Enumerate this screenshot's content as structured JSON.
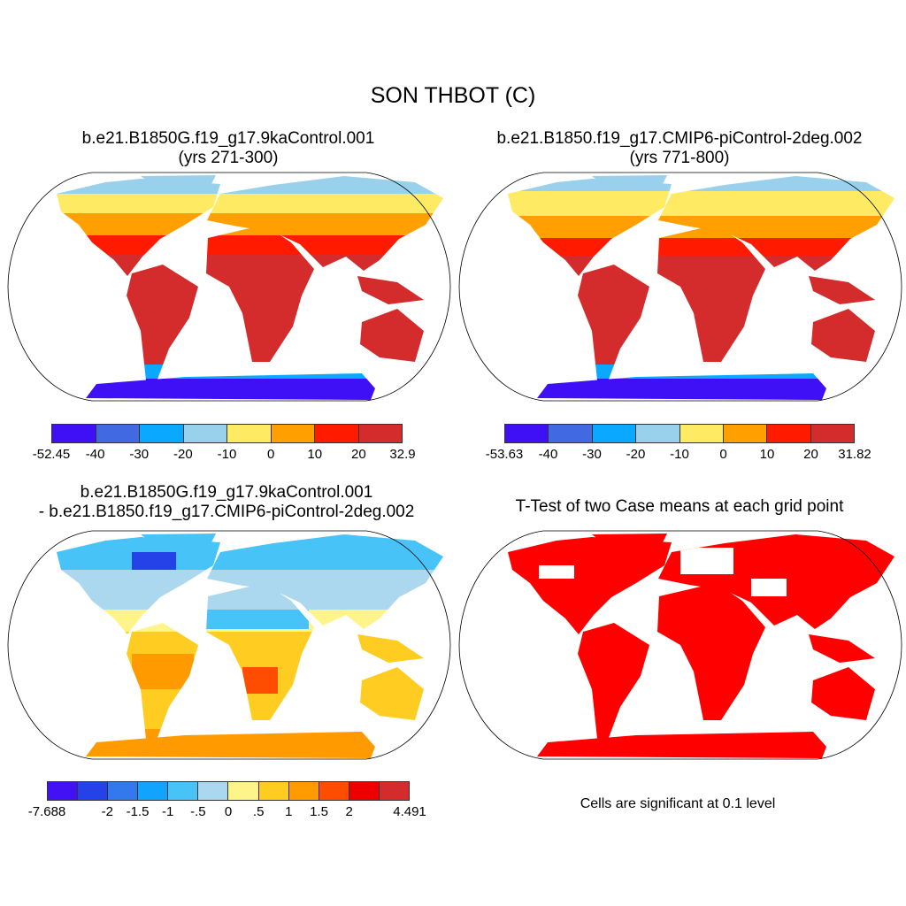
{
  "main_title": "SON THBOT (C)",
  "panels": [
    {
      "title_line1": "b.e21.B1850G.f19_g17.9kaControl.001",
      "title_line2": "(yrs 271-300)"
    },
    {
      "title_line1": "b.e21.B1850.f19_g17.CMIP6-piControl-2deg.002",
      "title_line2": "(yrs 771-800)"
    },
    {
      "title_line1": "b.e21.B1850G.f19_g17.9kaControl.001",
      "title_line2": "- b.e21.B1850.f19_g17.CMIP6-piControl-2deg.002"
    },
    {
      "title_line1": "T-Test of two Case means at each grid point",
      "note": "Cells are significant at 0.1 level"
    }
  ],
  "colorbars": [
    {
      "labels": [
        "-52.45",
        "-40",
        "-30",
        "-20",
        "-10",
        "0",
        "10",
        "20",
        "32.9"
      ],
      "colors": [
        "#3f10f5",
        "#4169e1",
        "#0aa9ff",
        "#99d0ec",
        "#feea63",
        "#ff9f00",
        "#ff1a00",
        "#d42c2c"
      ]
    },
    {
      "labels": [
        "-53.63",
        "-40",
        "-30",
        "-20",
        "-10",
        "0",
        "10",
        "20",
        "31.82"
      ],
      "colors": [
        "#3f10f5",
        "#4169e1",
        "#0aa9ff",
        "#99d0ec",
        "#feea63",
        "#ff9f00",
        "#ff1a00",
        "#d42c2c"
      ]
    },
    {
      "labels": [
        "-7.688",
        null,
        "-2",
        "-1.5",
        "-1",
        "-.5",
        "0",
        ".5",
        "1",
        "1.5",
        "2",
        null,
        "4.491"
      ],
      "colors": [
        "#4212f5",
        "#2541e8",
        "#3378ec",
        "#12a3ff",
        "#48c3f7",
        "#abd8ef",
        "#fff48a",
        "#ffcd22",
        "#ff9a00",
        "#ff4d00",
        "#ee0000",
        "#d42c2c"
      ]
    }
  ],
  "significance_color": "#ff0000"
}
